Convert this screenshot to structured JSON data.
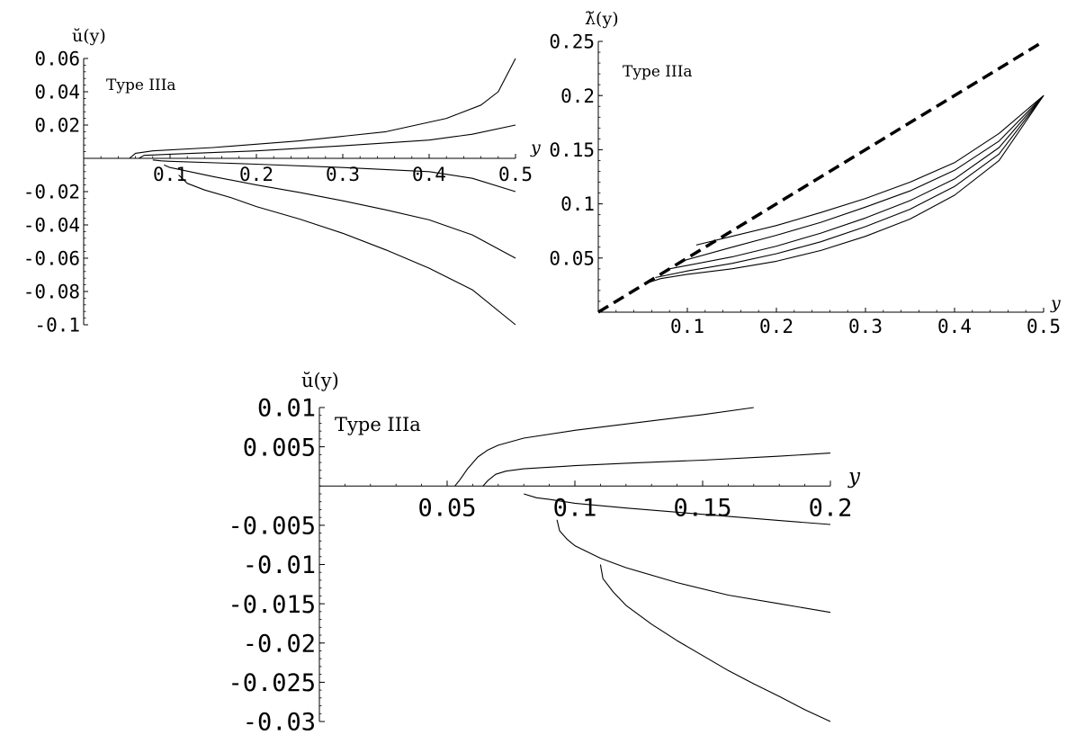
{
  "chart_data": [
    {
      "type": "line",
      "ylabel": "ŭ(y)",
      "xlabel": "y",
      "annotation": "Type IIIa",
      "xlim": [
        0,
        0.5
      ],
      "ylim": [
        -0.1,
        0.06
      ],
      "xticks": [
        {
          "v": 0.1,
          "t": "0.1"
        },
        {
          "v": 0.2,
          "t": "0.2"
        },
        {
          "v": 0.3,
          "t": "0.3"
        },
        {
          "v": 0.4,
          "t": "0.4"
        },
        {
          "v": 0.5,
          "t": "0.5"
        }
      ],
      "yticks": [
        {
          "v": 0.06,
          "t": "0.06"
        },
        {
          "v": 0.04,
          "t": "0.04"
        },
        {
          "v": 0.02,
          "t": "0.02"
        },
        {
          "v": -0.02,
          "t": "-0.02"
        },
        {
          "v": -0.04,
          "t": "-0.04"
        },
        {
          "v": -0.06,
          "t": "-0.06"
        },
        {
          "v": -0.08,
          "t": "-0.08"
        },
        {
          "v": -0.1,
          "t": "-0.1"
        }
      ],
      "series": [
        {
          "points": [
            [
              0.053,
              0
            ],
            [
              0.06,
              0.003
            ],
            [
              0.08,
              0.0045
            ],
            [
              0.15,
              0.0065
            ],
            [
              0.25,
              0.0105
            ],
            [
              0.35,
              0.016
            ],
            [
              0.42,
              0.024
            ],
            [
              0.46,
              0.032
            ],
            [
              0.48,
              0.04
            ],
            [
              0.5,
              0.06
            ]
          ]
        },
        {
          "points": [
            [
              0.064,
              0
            ],
            [
              0.07,
              0.0018
            ],
            [
              0.1,
              0.0025
            ],
            [
              0.2,
              0.0045
            ],
            [
              0.3,
              0.0075
            ],
            [
              0.4,
              0.011
            ],
            [
              0.45,
              0.0145
            ],
            [
              0.5,
              0.02
            ]
          ]
        },
        {
          "points": [
            [
              0.08,
              -0.001
            ],
            [
              0.09,
              -0.0015
            ],
            [
              0.1,
              -0.0018
            ],
            [
              0.2,
              -0.0035
            ],
            [
              0.3,
              -0.0055
            ],
            [
              0.4,
              -0.008
            ],
            [
              0.45,
              -0.012
            ],
            [
              0.5,
              -0.02
            ]
          ]
        },
        {
          "points": [
            [
              0.093,
              -0.004
            ],
            [
              0.1,
              -0.0055
            ],
            [
              0.15,
              -0.011
            ],
            [
              0.2,
              -0.016
            ],
            [
              0.25,
              -0.0205
            ],
            [
              0.3,
              -0.0255
            ],
            [
              0.35,
              -0.031
            ],
            [
              0.4,
              -0.037
            ],
            [
              0.45,
              -0.046
            ],
            [
              0.5,
              -0.06
            ]
          ]
        },
        {
          "points": [
            [
              0.11,
              -0.01
            ],
            [
              0.12,
              -0.015
            ],
            [
              0.14,
              -0.019
            ],
            [
              0.17,
              -0.0235
            ],
            [
              0.2,
              -0.029
            ],
            [
              0.25,
              -0.0365
            ],
            [
              0.3,
              -0.045
            ],
            [
              0.35,
              -0.055
            ],
            [
              0.4,
              -0.066
            ],
            [
              0.45,
              -0.079
            ],
            [
              0.5,
              -0.1
            ]
          ]
        }
      ]
    },
    {
      "type": "line",
      "ylabel": "λ̆(y)",
      "xlabel": "y",
      "annotation": "Type IIIa",
      "xlim": [
        0,
        0.5
      ],
      "ylim": [
        0,
        0.25
      ],
      "xticks": [
        {
          "v": 0.1,
          "t": "0.1"
        },
        {
          "v": 0.2,
          "t": "0.2"
        },
        {
          "v": 0.3,
          "t": "0.3"
        },
        {
          "v": 0.4,
          "t": "0.4"
        },
        {
          "v": 0.5,
          "t": "0.5"
        }
      ],
      "yticks": [
        {
          "v": 0.25,
          "t": "0.25"
        },
        {
          "v": 0.2,
          "t": "0.2"
        },
        {
          "v": 0.15,
          "t": "0.15"
        },
        {
          "v": 0.1,
          "t": "0.1"
        },
        {
          "v": 0.05,
          "t": "0.05"
        }
      ],
      "series": [
        {
          "dashed": true,
          "points": [
            [
              0,
              0
            ],
            [
              0.5,
              0.25
            ]
          ]
        },
        {
          "points": [
            [
              0.11,
              0.062
            ],
            [
              0.15,
              0.07
            ],
            [
              0.2,
              0.08
            ],
            [
              0.25,
              0.092
            ],
            [
              0.3,
              0.105
            ],
            [
              0.35,
              0.12
            ],
            [
              0.4,
              0.138
            ],
            [
              0.45,
              0.165
            ],
            [
              0.5,
              0.2
            ]
          ]
        },
        {
          "points": [
            [
              0.093,
              0.047
            ],
            [
              0.15,
              0.06
            ],
            [
              0.2,
              0.071
            ],
            [
              0.25,
              0.083
            ],
            [
              0.3,
              0.097
            ],
            [
              0.35,
              0.112
            ],
            [
              0.4,
              0.131
            ],
            [
              0.45,
              0.158
            ],
            [
              0.5,
              0.2
            ]
          ]
        },
        {
          "points": [
            [
              0.08,
              0.04
            ],
            [
              0.15,
              0.051
            ],
            [
              0.2,
              0.061
            ],
            [
              0.25,
              0.073
            ],
            [
              0.3,
              0.087
            ],
            [
              0.35,
              0.103
            ],
            [
              0.4,
              0.123
            ],
            [
              0.45,
              0.152
            ],
            [
              0.5,
              0.2
            ]
          ]
        },
        {
          "points": [
            [
              0.064,
              0.032
            ],
            [
              0.1,
              0.038
            ],
            [
              0.15,
              0.045
            ],
            [
              0.2,
              0.054
            ],
            [
              0.25,
              0.065
            ],
            [
              0.3,
              0.079
            ],
            [
              0.35,
              0.095
            ],
            [
              0.4,
              0.116
            ],
            [
              0.45,
              0.146
            ],
            [
              0.5,
              0.2
            ]
          ]
        },
        {
          "points": [
            [
              0.053,
              0.0265
            ],
            [
              0.07,
              0.031
            ],
            [
              0.1,
              0.035
            ],
            [
              0.15,
              0.04
            ],
            [
              0.2,
              0.047
            ],
            [
              0.25,
              0.057
            ],
            [
              0.3,
              0.07
            ],
            [
              0.35,
              0.086
            ],
            [
              0.4,
              0.108
            ],
            [
              0.45,
              0.14
            ],
            [
              0.5,
              0.2
            ]
          ]
        }
      ]
    },
    {
      "type": "line",
      "ylabel": "ŭ(y)",
      "xlabel": "y",
      "annotation": "Type IIIa",
      "xlim": [
        0,
        0.2
      ],
      "ylim": [
        -0.03,
        0.01
      ],
      "xticks": [
        {
          "v": 0.05,
          "t": "0.05"
        },
        {
          "v": 0.1,
          "t": "0.1"
        },
        {
          "v": 0.15,
          "t": "0.15"
        },
        {
          "v": 0.2,
          "t": "0.2"
        }
      ],
      "yticks": [
        {
          "v": 0.01,
          "t": "0.01"
        },
        {
          "v": 0.005,
          "t": "0.005"
        },
        {
          "v": -0.005,
          "t": "-0.005"
        },
        {
          "v": -0.01,
          "t": "-0.01"
        },
        {
          "v": -0.015,
          "t": "-0.015"
        },
        {
          "v": -0.02,
          "t": "-0.02"
        },
        {
          "v": -0.025,
          "t": "-0.025"
        },
        {
          "v": -0.03,
          "t": "-0.03"
        }
      ],
      "series": [
        {
          "points": [
            [
              0.053,
              0
            ],
            [
              0.055,
              0.0008
            ],
            [
              0.058,
              0.0022
            ],
            [
              0.062,
              0.0037
            ],
            [
              0.066,
              0.0046
            ],
            [
              0.07,
              0.0052
            ],
            [
              0.08,
              0.0061
            ],
            [
              0.1,
              0.0071
            ],
            [
              0.13,
              0.0083
            ],
            [
              0.15,
              0.0091
            ],
            [
              0.17,
              0.01
            ]
          ]
        },
        {
          "points": [
            [
              0.064,
              0
            ],
            [
              0.066,
              0.0007
            ],
            [
              0.069,
              0.0015
            ],
            [
              0.073,
              0.0019
            ],
            [
              0.08,
              0.0022
            ],
            [
              0.1,
              0.0026
            ],
            [
              0.12,
              0.0029
            ],
            [
              0.15,
              0.0033
            ],
            [
              0.18,
              0.0038
            ],
            [
              0.2,
              0.0042
            ]
          ]
        },
        {
          "points": [
            [
              0.08,
              -0.001
            ],
            [
              0.085,
              -0.0015
            ],
            [
              0.09,
              -0.0017
            ],
            [
              0.1,
              -0.0022
            ],
            [
              0.12,
              -0.0028
            ],
            [
              0.15,
              -0.0036
            ],
            [
              0.18,
              -0.0044
            ],
            [
              0.2,
              -0.0049
            ]
          ]
        },
        {
          "points": [
            [
              0.093,
              -0.0043
            ],
            [
              0.094,
              -0.0057
            ],
            [
              0.097,
              -0.0068
            ],
            [
              0.1,
              -0.0076
            ],
            [
              0.11,
              -0.0092
            ],
            [
              0.12,
              -0.0104
            ],
            [
              0.14,
              -0.0123
            ],
            [
              0.16,
              -0.0139
            ],
            [
              0.18,
              -0.015
            ],
            [
              0.2,
              -0.0161
            ]
          ]
        },
        {
          "points": [
            [
              0.11,
              -0.01
            ],
            [
              0.111,
              -0.0118
            ],
            [
              0.115,
              -0.0135
            ],
            [
              0.12,
              -0.0152
            ],
            [
              0.13,
              -0.0176
            ],
            [
              0.14,
              -0.0197
            ],
            [
              0.15,
              -0.0216
            ],
            [
              0.16,
              -0.0235
            ],
            [
              0.17,
              -0.0252
            ],
            [
              0.18,
              -0.0268
            ],
            [
              0.19,
              -0.0285
            ],
            [
              0.2,
              -0.03
            ]
          ]
        }
      ]
    }
  ]
}
